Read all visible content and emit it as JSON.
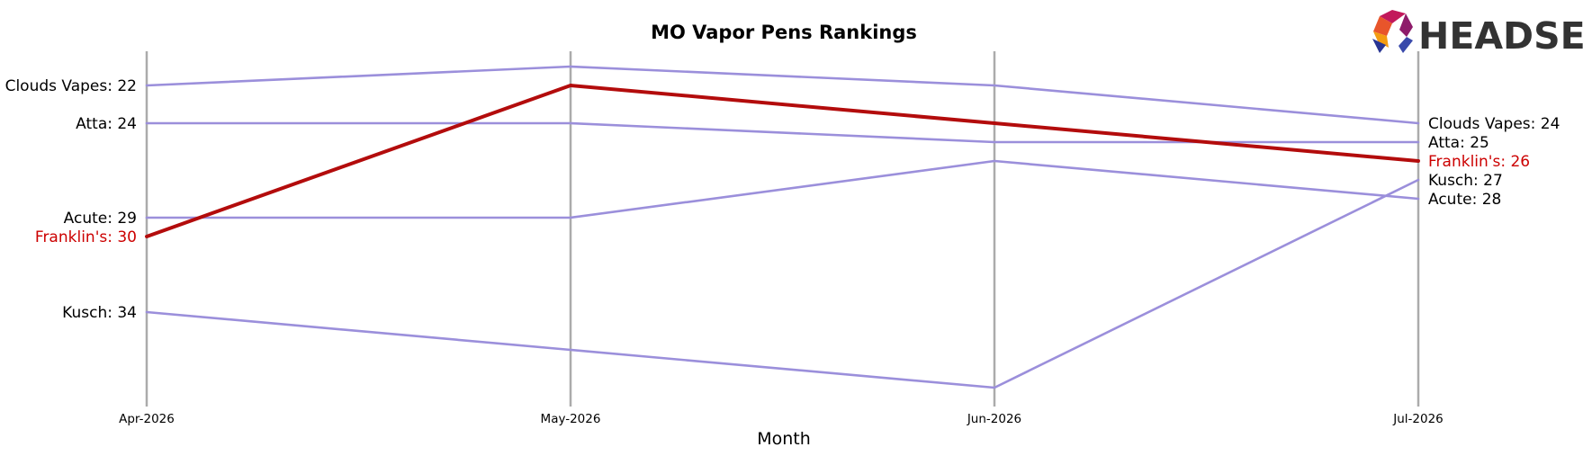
{
  "chart_data": {
    "type": "line",
    "title": "MO Vapor Pens Rankings",
    "xlabel": "Month",
    "ylabel": "",
    "categories": [
      "Apr-2026",
      "May-2026",
      "Jun-2026",
      "Jul-2026"
    ],
    "y_inverted": true,
    "ylim": [
      20.2,
      37.8
    ],
    "grid": false,
    "series": [
      {
        "name": "Clouds Vapes",
        "values": [
          22,
          21,
          22,
          24
        ],
        "color": "#9b8fdb",
        "highlight": false,
        "start_label": "Clouds Vapes: 22",
        "end_label": "Clouds Vapes: 24"
      },
      {
        "name": "Atta",
        "values": [
          24,
          24,
          25,
          25
        ],
        "color": "#9b8fdb",
        "highlight": false,
        "start_label": "Atta: 24",
        "end_label": "Atta: 25"
      },
      {
        "name": "Acute",
        "values": [
          29,
          29,
          26,
          28
        ],
        "color": "#9b8fdb",
        "highlight": false,
        "start_label": "Acute: 29",
        "end_label": "Acute: 28"
      },
      {
        "name": "Kusch",
        "values": [
          34,
          36,
          38,
          27
        ],
        "color": "#9b8fdb",
        "highlight": false,
        "start_label": "Kusch: 34",
        "end_label": "Kusch: 27"
      },
      {
        "name": "Franklin's",
        "values": [
          30,
          22,
          24,
          26
        ],
        "color": "#b30c0c",
        "highlight": true,
        "start_label": "Franklin's: 30",
        "end_label": "Franklin's: 26"
      }
    ]
  },
  "logo": {
    "text": "HEADSET"
  },
  "colors": {
    "axis_line": "#ababab",
    "highlight_label": "#cc0000",
    "label": "#000000"
  }
}
